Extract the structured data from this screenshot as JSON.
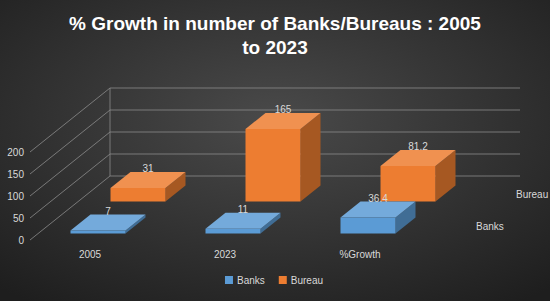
{
  "chart_data": {
    "type": "bar",
    "title": "% Growth in number of Banks/Bureaus : 2005 to 2023",
    "categories": [
      "2005",
      "2023",
      "%Growth"
    ],
    "series": [
      {
        "name": "Banks",
        "color": "#5b9bd5",
        "values": [
          7,
          11,
          36.4
        ]
      },
      {
        "name": "Bureau",
        "color": "#ed7d31",
        "values": [
          31,
          165,
          81.2
        ]
      }
    ],
    "ylim": [
      0,
      200
    ],
    "yticks": [
      0,
      50,
      100,
      150,
      200
    ],
    "grid": true,
    "legend": "bottom",
    "data_labels": true
  }
}
